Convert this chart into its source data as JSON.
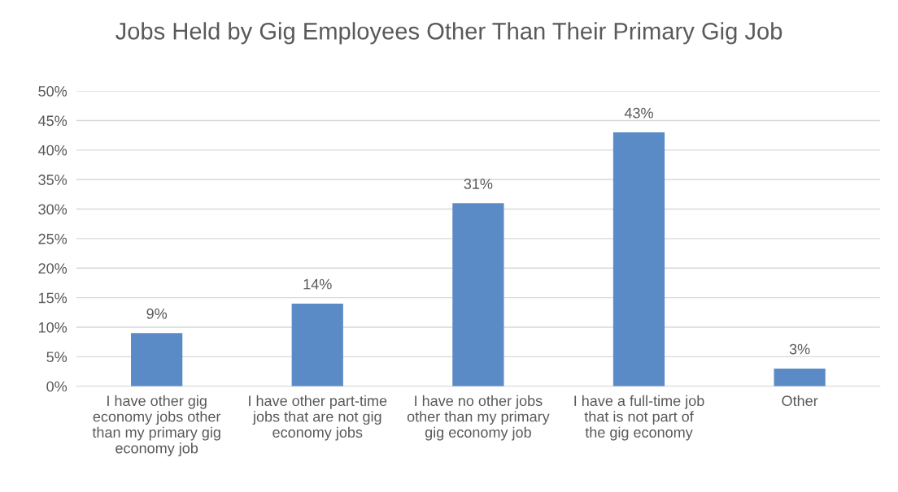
{
  "chart_data": {
    "type": "bar",
    "title": "Jobs Held by Gig Employees Other Than Their Primary Gig Job",
    "categories": [
      "I have other gig economy jobs other than my primary gig economy job",
      "I have other part-time jobs that are not gig economy jobs",
      "I have no other jobs other than my primary gig economy job",
      "I have a full-time job that is not part of the gig economy",
      "Other"
    ],
    "values": [
      9,
      14,
      31,
      43,
      3
    ],
    "value_labels": [
      "9%",
      "14%",
      "31%",
      "43%",
      "3%"
    ],
    "color": "#5b8bc6",
    "ylim": [
      0,
      50
    ],
    "yticks": [
      {
        "value": 0,
        "label": "0%"
      },
      {
        "value": 5,
        "label": "5%"
      },
      {
        "value": 10,
        "label": "10%"
      },
      {
        "value": 15,
        "label": "15%"
      },
      {
        "value": 20,
        "label": "20%"
      },
      {
        "value": 25,
        "label": "25%"
      },
      {
        "value": 30,
        "label": "30%"
      },
      {
        "value": 35,
        "label": "35%"
      },
      {
        "value": 40,
        "label": "40%"
      },
      {
        "value": 45,
        "label": "45%"
      },
      {
        "value": 50,
        "label": "50%"
      }
    ],
    "grid": "y",
    "legend": false
  }
}
